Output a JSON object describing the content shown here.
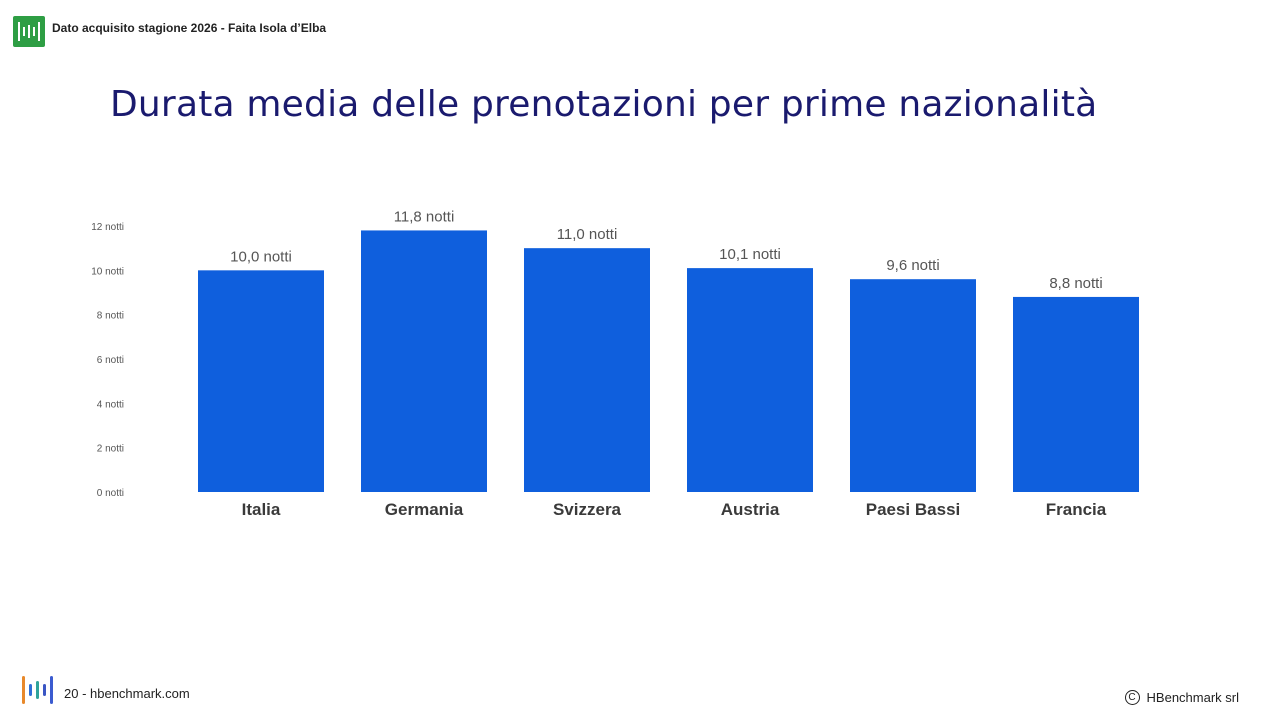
{
  "header": {
    "text": "Dato acquisito stagione 2026 - Faita Isola d’Elba"
  },
  "title": "Durata media delle prenotazioni per prime nazionalità",
  "footer": {
    "left": "20 - hbenchmark.com",
    "right": "HBenchmark srl",
    "copyright_symbol": "C"
  },
  "icons": {
    "top_logo": "hbenchmark-logo-icon",
    "bottom_logo": "hbenchmark-logo-icon",
    "copyright": "copyright-icon"
  },
  "colors": {
    "bar": "#0f5fdd",
    "title": "#1a1a6e",
    "logo_green": "#2e9e44"
  },
  "chart_data": {
    "type": "bar",
    "categories": [
      "Italia",
      "Germania",
      "Svizzera",
      "Austria",
      "Paesi Bassi",
      "Francia"
    ],
    "values": [
      10.0,
      11.8,
      11.0,
      10.1,
      9.6,
      8.8
    ],
    "data_labels": [
      "10,0 notti",
      "11,8 notti",
      "11,0 notti",
      "10,1 notti",
      "9,6 notti",
      "8,8 notti"
    ],
    "yticks": [
      0,
      2,
      4,
      6,
      8,
      10,
      12
    ],
    "ytick_labels": [
      "0 notti",
      "2 notti",
      "4 notti",
      "6 notti",
      "8 notti",
      "10 notti",
      "12 notti"
    ],
    "ylim": [
      0,
      12
    ],
    "grid": false,
    "legend": "none"
  }
}
